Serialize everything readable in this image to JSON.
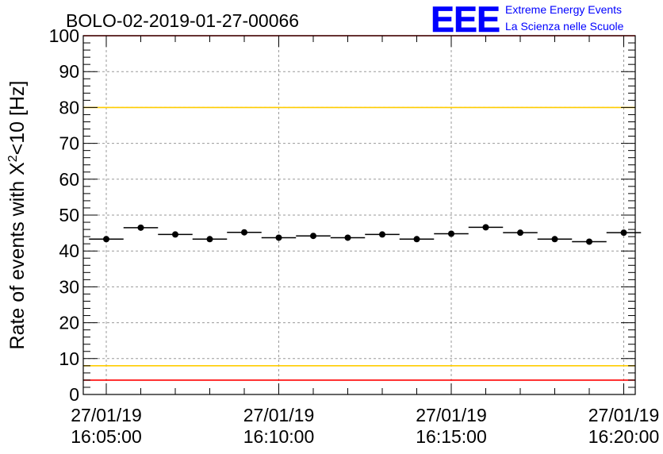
{
  "title": "BOLO-02-2019-01-27-00066",
  "logo": {
    "letters": "EEE",
    "line1": "Extreme Energy Events",
    "line2": "La Scienza nelle Scuole",
    "color": "#0000ff"
  },
  "chart_data": {
    "type": "scatter",
    "title": "BOLO-02-2019-01-27-00066",
    "xlabel": "",
    "ylabel": "Rate of events with X²<10 [Hz]",
    "ylabel_parts": {
      "pre": "Rate of events with X",
      "sup": "2",
      "post": "<10 [Hz]"
    },
    "ylim": [
      0,
      100
    ],
    "yticks": [
      0,
      10,
      20,
      30,
      40,
      50,
      60,
      70,
      80,
      90,
      100
    ],
    "xlim_seconds": [
      -40,
      920
    ],
    "xticks": [
      {
        "t": 0,
        "date": "27/01/19",
        "time": "16:05:00"
      },
      {
        "t": 300,
        "date": "27/01/19",
        "time": "16:10:00"
      },
      {
        "t": 600,
        "date": "27/01/19",
        "time": "16:15:00"
      },
      {
        "t": 900,
        "date": "27/01/19",
        "time": "16:20:00"
      }
    ],
    "grid": true,
    "bin_width_seconds": 60,
    "series": [
      {
        "x_seconds": [
          0,
          60,
          120,
          180,
          240,
          300,
          360,
          420,
          480,
          540,
          600,
          660,
          720,
          780,
          840,
          900
        ],
        "y": [
          43.3,
          46.5,
          44.6,
          43.3,
          45.2,
          43.7,
          44.2,
          43.7,
          44.6,
          43.3,
          44.8,
          46.6,
          45.1,
          43.3,
          42.6,
          45.1
        ],
        "color": "#000000"
      }
    ],
    "reference_lines": [
      {
        "y": 100,
        "color": "#ff0000"
      },
      {
        "y": 80,
        "color": "#ffcc00"
      },
      {
        "y": 8,
        "color": "#ffcc00"
      },
      {
        "y": 4,
        "color": "#ff0000"
      }
    ]
  }
}
